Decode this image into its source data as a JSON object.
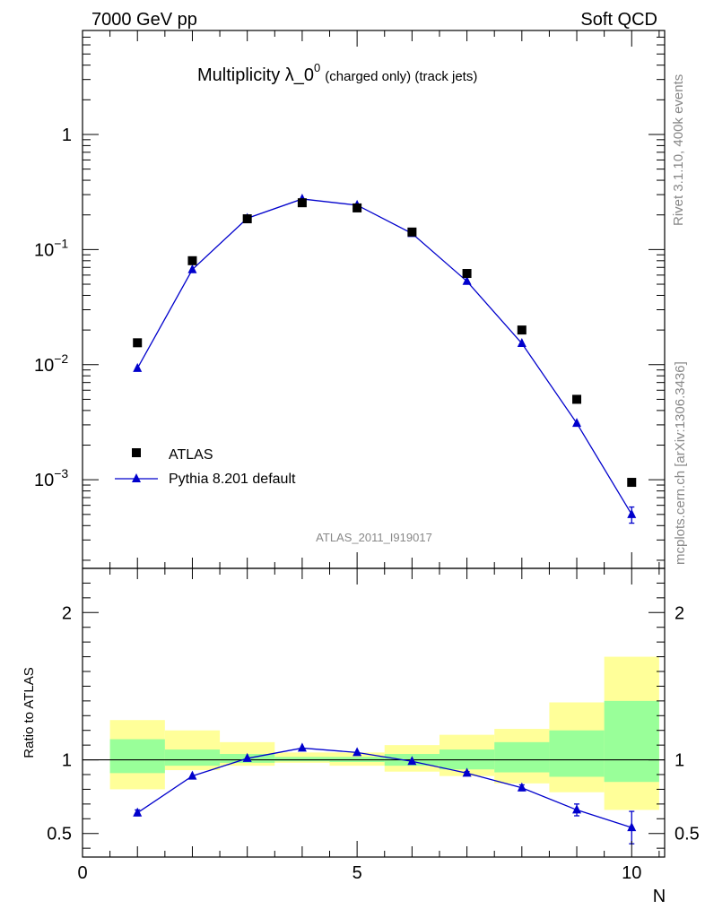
{
  "header": {
    "left": "7000 GeV pp",
    "right": "Soft QCD",
    "watermark": "ATLAS_2011_I919017",
    "side_top": "Rivet 3.1.10,  400k events",
    "side_bottom": "mcplots.cern.ch [arXiv:1306.3436]"
  },
  "colors": {
    "mc": "#0000cc",
    "band_outer": "#ffff99",
    "band_inner": "#99ff99",
    "data": "#000000"
  },
  "chart_data": [
    {
      "type": "scatter",
      "title_main": "Multiplicity λ_0",
      "title_sup": "0",
      "title_sub": "(charged only) (track jets)",
      "y_scale": "log",
      "xlim": [
        0,
        10.6
      ],
      "ylim": [
        0.00017,
        8
      ],
      "y_ticks": [
        {
          "value": 1,
          "label": "1"
        },
        {
          "value": 0.1,
          "label": "10",
          "exp": "−1"
        },
        {
          "value": 0.01,
          "label": "10",
          "exp": "−2"
        },
        {
          "value": 0.001,
          "label": "10",
          "exp": "−3"
        }
      ],
      "legend": {
        "position": "bottom-left",
        "data_label": "ATLAS",
        "mc_label": "Pythia 8.201 default"
      },
      "series": [
        {
          "name": "ATLAS",
          "style": "square",
          "x": [
            1,
            2,
            3,
            4,
            5,
            6,
            7,
            8,
            9,
            10
          ],
          "y": [
            0.0155,
            0.08,
            0.185,
            0.255,
            0.23,
            0.142,
            0.062,
            0.02,
            0.005,
            0.00095
          ]
        },
        {
          "name": "Pythia 8.201 default",
          "style": "triangle-line",
          "x": [
            1,
            2,
            3,
            4,
            5,
            6,
            7,
            8,
            9,
            10
          ],
          "y": [
            0.0093,
            0.067,
            0.187,
            0.275,
            0.243,
            0.138,
            0.053,
            0.0153,
            0.0031,
            0.0005
          ],
          "err_y": [
            0,
            0,
            0,
            0,
            0,
            0,
            0,
            0,
            0,
            8e-05
          ]
        }
      ]
    },
    {
      "type": "line",
      "ylabel": "Ratio to ATLAS",
      "xlabel": "N",
      "xlim": [
        0,
        10.6
      ],
      "ylim": [
        0.34,
        2.3
      ],
      "x_ticks": [
        0,
        5,
        10
      ],
      "y_ticks": [
        0.5,
        1,
        2
      ],
      "reference": 1,
      "bands": {
        "x_lo": [
          0.5,
          1.5,
          2.5,
          3.5,
          4.5,
          5.5,
          6.5,
          7.5,
          8.5,
          9.5
        ],
        "x_hi": [
          1.5,
          2.5,
          3.5,
          4.5,
          5.5,
          6.5,
          7.5,
          8.5,
          9.5,
          10.5
        ],
        "inner_lo": [
          0.91,
          0.96,
          0.98,
          0.99,
          0.985,
          0.96,
          0.935,
          0.915,
          0.885,
          0.85
        ],
        "inner_hi": [
          1.14,
          1.07,
          1.04,
          1.02,
          1.02,
          1.04,
          1.07,
          1.12,
          1.2,
          1.4
        ],
        "outer_lo": [
          0.8,
          0.93,
          0.96,
          0.98,
          0.96,
          0.92,
          0.89,
          0.84,
          0.78,
          0.66
        ],
        "outer_hi": [
          1.27,
          1.2,
          1.12,
          1.05,
          1.05,
          1.1,
          1.17,
          1.21,
          1.39,
          1.7
        ]
      },
      "series": [
        {
          "name": "Pythia 8.201 default",
          "x": [
            1,
            2,
            3,
            4,
            5,
            6,
            7,
            8,
            9,
            10
          ],
          "y": [
            0.64,
            0.89,
            1.01,
            1.08,
            1.05,
            0.99,
            0.91,
            0.81,
            0.66,
            0.54
          ],
          "err_y": [
            0.02,
            0.0,
            0.0,
            0.0,
            0.0,
            0.0,
            0.01,
            0.02,
            0.04,
            0.11
          ]
        }
      ]
    }
  ]
}
